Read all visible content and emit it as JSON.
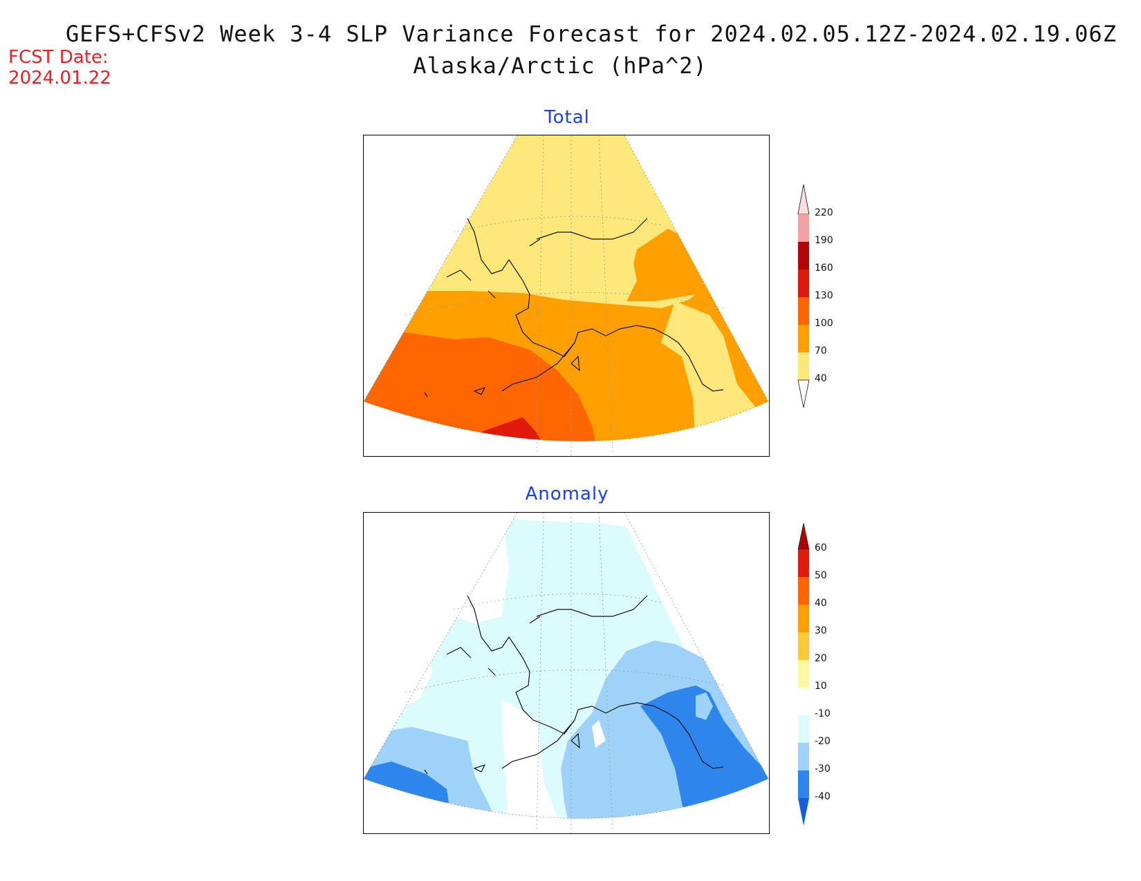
{
  "header": {
    "title_line1": "GEFS+CFSv2 Week 3-4 SLP Variance Forecast for 2024.02.05.12Z-2024.02.19.06Z",
    "title_line2": "Alaska/Arctic (hPa^2)",
    "fcst_label": "FCST Date:",
    "fcst_date": "2024.01.22"
  },
  "panels": {
    "total": {
      "title": "Total"
    },
    "anomaly": {
      "title": "Anomaly"
    }
  },
  "colorbars": {
    "total": {
      "labels": [
        "220",
        "190",
        "160",
        "130",
        "100",
        "70",
        "40"
      ],
      "colors": [
        "#ffdede",
        "#f4a0a0",
        "#b00808",
        "#e01a0a",
        "#ff6600",
        "#ffa000",
        "#ffe87a"
      ]
    },
    "anomaly": {
      "labels": [
        "60",
        "50",
        "40",
        "30",
        "20",
        "10",
        "-10",
        "-20",
        "-30",
        "-40"
      ],
      "colors": [
        "#b00000",
        "#dd1c0c",
        "#ff6600",
        "#ff9f00",
        "#ffc838",
        "#fff6a0",
        "#ffffff",
        "#dcfbfc",
        "#9fd2f8",
        "#2e86ec",
        "#1560d8"
      ]
    }
  },
  "colors": {
    "title": "#1a3cff",
    "fcst": "#e8202a"
  }
}
